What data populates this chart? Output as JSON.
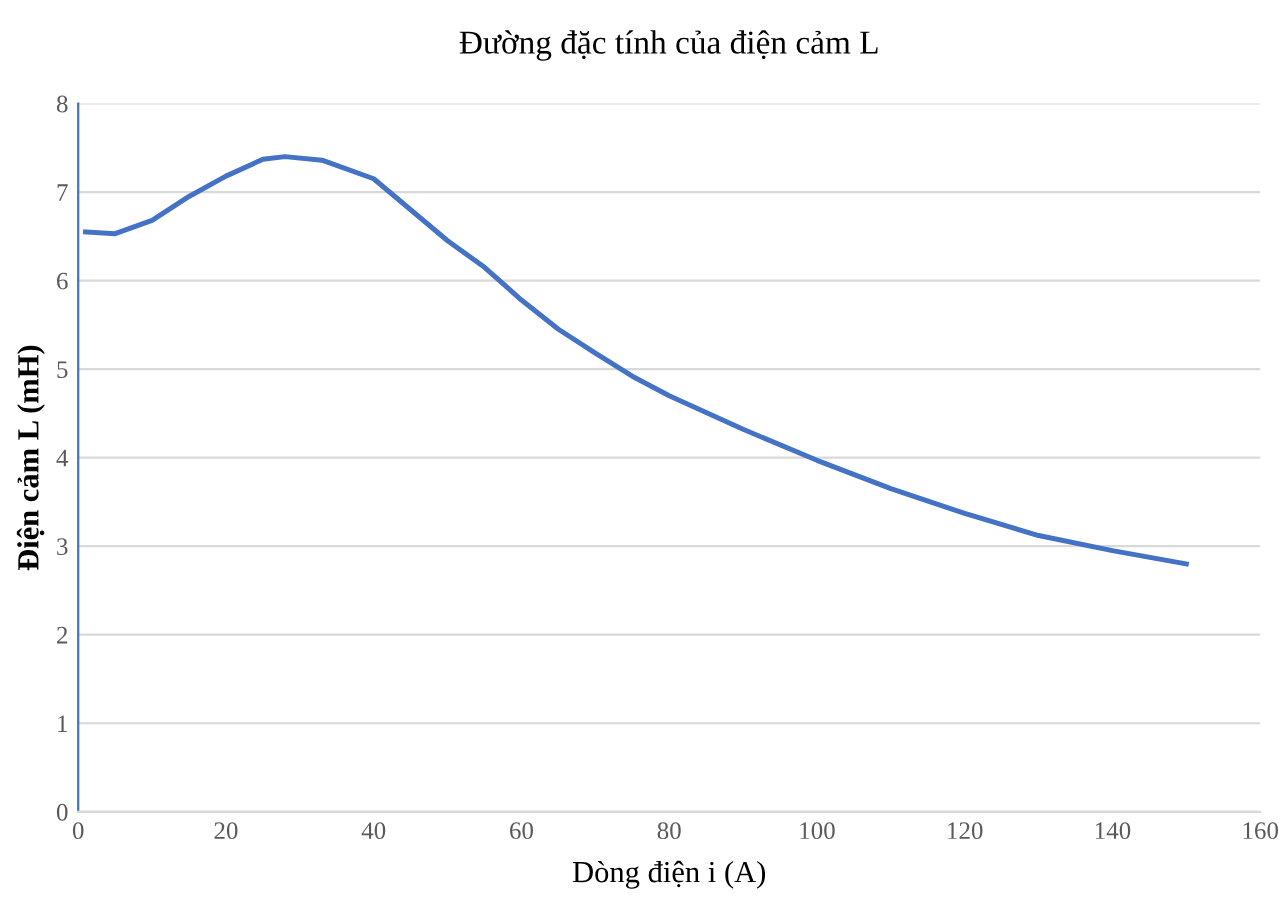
{
  "chart_data": {
    "type": "line",
    "title": "Đường đặc tính của điện cảm L",
    "xlabel": "Dòng điện i (A)",
    "ylabel": "Điện cảm L (mH)",
    "x": [
      1,
      5,
      10,
      15,
      20,
      25,
      28,
      33,
      40,
      45,
      50,
      55,
      60,
      65,
      70,
      75,
      80,
      90,
      100,
      110,
      120,
      130,
      140,
      150
    ],
    "series": [
      {
        "color": "#4472c4",
        "values": [
          6.55,
          6.53,
          6.68,
          6.95,
          7.18,
          7.37,
          7.4,
          7.36,
          7.15,
          6.8,
          6.45,
          6.15,
          5.78,
          5.45,
          5.18,
          4.92,
          4.7,
          4.32,
          3.97,
          3.65,
          3.37,
          3.12,
          2.95,
          2.8
        ]
      }
    ],
    "xlim": [
      0,
      160
    ],
    "xticks": [
      0,
      20,
      40,
      60,
      80,
      100,
      120,
      140,
      160
    ],
    "ylim": [
      0,
      8
    ],
    "yticks": [
      0,
      1,
      2,
      3,
      4,
      5,
      6,
      7,
      8
    ],
    "grid": "y",
    "marker": "none",
    "line_style": "solid"
  }
}
